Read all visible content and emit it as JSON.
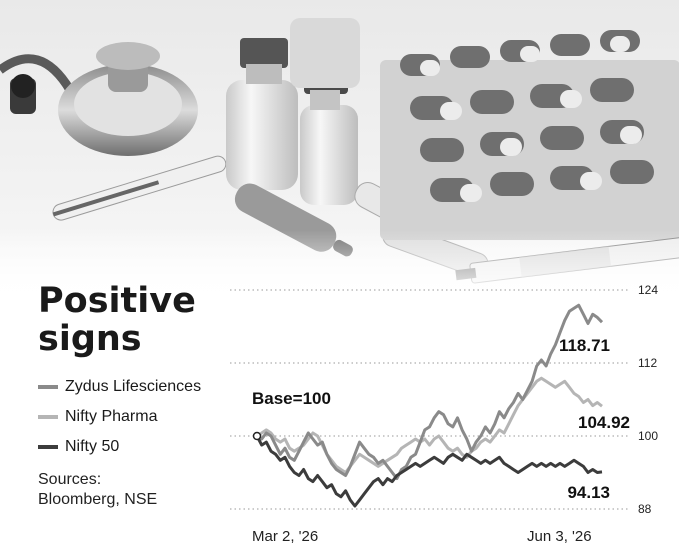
{
  "title_line1": "Positive",
  "title_line2": "signs",
  "legend": [
    {
      "label": "Zydus Lifesciences",
      "color": "#8a8a8a"
    },
    {
      "label": "Nifty Pharma",
      "color": "#b5b5b5"
    },
    {
      "label": "Nifty 50",
      "color": "#3c3c3c"
    }
  ],
  "sources": "Sources:\nBloomberg, NSE",
  "base_label": "Base=100",
  "chart_data": {
    "type": "line",
    "ylim": [
      88,
      124
    ],
    "yticks": [
      "124",
      "112",
      "100",
      "88"
    ],
    "x_start_label": "Mar 2, '26",
    "x_end_label": "Jun 3, '26",
    "series": [
      {
        "name": "Zydus Lifesciences",
        "color": "#8a8a8a",
        "end_label": "118.71",
        "values": [
          100,
          99.5,
          100.5,
          100,
          98.5,
          97,
          98,
          96.5,
          96,
          97.5,
          99,
          100.5,
          99.5,
          98.5,
          99,
          97,
          95.5,
          94.5,
          94,
          93.5,
          95,
          97,
          99,
          98,
          97,
          96.5,
          95.5,
          96,
          95,
          94,
          93,
          94.5,
          95,
          96.5,
          97,
          99,
          101,
          101.5,
          103,
          104,
          103.5,
          102,
          101.5,
          103,
          101,
          99.5,
          97.5,
          99,
          100,
          101.5,
          100.5,
          102,
          104,
          103,
          104.5,
          105.5,
          107,
          106,
          107.5,
          109,
          111.5,
          112.5,
          111.5,
          113.5,
          115,
          117,
          119,
          120.5,
          121,
          121.5,
          120,
          118.5,
          120,
          119.5,
          118.7
        ]
      },
      {
        "name": "Nifty Pharma",
        "color": "#b5b5b5",
        "end_label": "104.92",
        "values": [
          100,
          100.5,
          101,
          100.5,
          99.5,
          99,
          99.5,
          98,
          97.5,
          98,
          98.5,
          99.5,
          100.5,
          100,
          98.5,
          97,
          96,
          95,
          94.5,
          94,
          95,
          96,
          97,
          96.5,
          96,
          95.5,
          95,
          95.5,
          96,
          96.5,
          97,
          98,
          98.5,
          99,
          99.5,
          99,
          99.5,
          98.5,
          99.5,
          100,
          99,
          98,
          97.5,
          98,
          97,
          96.5,
          97.5,
          98,
          99,
          99.5,
          99,
          100,
          101,
          100.5,
          102,
          103.5,
          105,
          106,
          107,
          108,
          109,
          109.5,
          109,
          108.5,
          108,
          108.5,
          109,
          108,
          107,
          106.5,
          105.5,
          106,
          105,
          105.5,
          104.9
        ]
      },
      {
        "name": "Nifty 50",
        "color": "#3c3c3c",
        "end_label": "94.13",
        "values": [
          100,
          98.5,
          99,
          97.5,
          97,
          96,
          96.5,
          95,
          94,
          93.5,
          94.5,
          93,
          92.5,
          93.5,
          92.5,
          91.5,
          92,
          90.5,
          90,
          91,
          89.5,
          88.5,
          89.5,
          90.5,
          91.5,
          92.5,
          93,
          92,
          93,
          92.5,
          93.5,
          94,
          94.5,
          95,
          95.5,
          95,
          95.5,
          96,
          96.5,
          96,
          95.5,
          96.5,
          97,
          96.5,
          96,
          97,
          96.5,
          96,
          95.5,
          96,
          95.5,
          96,
          96.5,
          95.5,
          95,
          94.5,
          94,
          94.5,
          95,
          95.5,
          95,
          95.5,
          95,
          95.5,
          95,
          95.5,
          95,
          95.5,
          96,
          95.5,
          95,
          94,
          94.5,
          94,
          94.1
        ]
      }
    ]
  }
}
